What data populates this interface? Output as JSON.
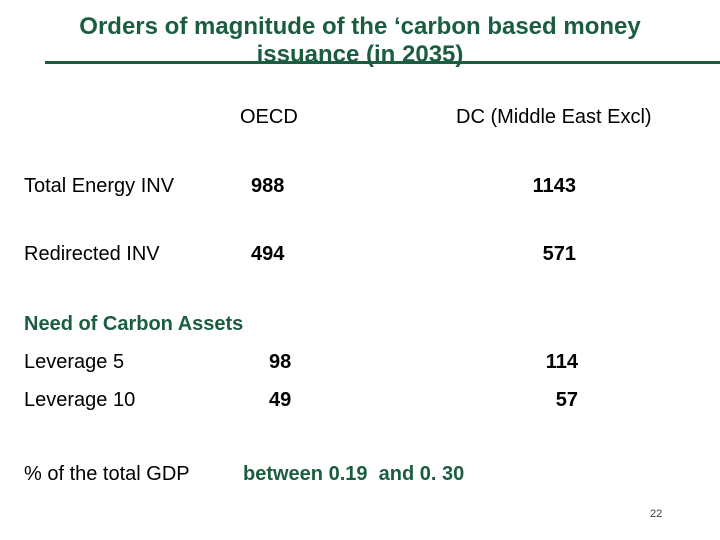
{
  "slide": {
    "title_line1": "Orders of magnitude of the ‘carbon based money",
    "title_line2": "issuance (in 2035)",
    "accent_color": "#1a5e3f",
    "page_number": "22"
  },
  "table": {
    "headers": {
      "oecd": "OECD",
      "dc": "DC (Middle East Excl)"
    },
    "rows": [
      {
        "label": "Total Energy INV",
        "oecd": "988",
        "dc": "1143"
      },
      {
        "label": "Redirected INV",
        "oecd": "494",
        "dc": "571"
      }
    ]
  },
  "carbon_assets": {
    "heading": "Need of Carbon Assets",
    "rows": [
      {
        "label": "Leverage 5",
        "oecd": "98",
        "dc": "114"
      },
      {
        "label": "Leverage 10",
        "oecd": "49",
        "dc": "57"
      }
    ]
  },
  "gdp": {
    "label": "% of the total GDP",
    "value": "between 0.19  and 0. 30"
  }
}
